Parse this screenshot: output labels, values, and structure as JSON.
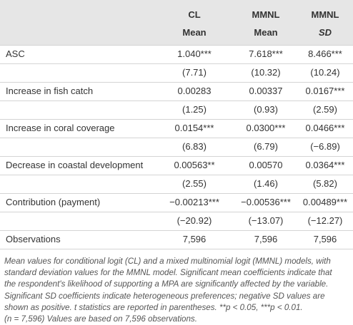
{
  "table": {
    "header": [
      [
        "CL",
        "MMNL",
        "MMNL"
      ],
      [
        "Mean",
        "Mean",
        "SD"
      ]
    ],
    "rows": [
      [
        "ASC",
        "1.040***",
        "7.618***",
        "8.466***"
      ],
      [
        null,
        "(7.71)",
        "(10.32)",
        "(10.24)"
      ],
      [
        "Increase in fish catch",
        "0.00283",
        "0.00337",
        "0.0167***"
      ],
      [
        null,
        "(1.25)",
        "(0.93)",
        "(2.59)"
      ],
      [
        "Increase in coral coverage",
        "0.0154***",
        "0.0300***",
        "0.0466***"
      ],
      [
        null,
        "(6.83)",
        "(6.79)",
        "(−6.89)"
      ],
      [
        "Decrease in coastal development",
        "0.00563**",
        "0.00570",
        "0.0364***"
      ],
      [
        null,
        "(2.55)",
        "(1.46)",
        "(5.82)"
      ],
      [
        "Contribution (payment)",
        "−0.00213***",
        "−0.00536***",
        "0.00489***"
      ],
      [
        null,
        "(−20.92)",
        "(−13.07)",
        "(−12.27)"
      ],
      [
        "Observations",
        "7,596",
        "7,596",
        "7,596"
      ]
    ]
  },
  "footnote": [
    "Mean values for conditional logit (CL) and a mixed multinomial logit (MMNL) models, with",
    "standard deviation values for the MMNL model. Significant mean coefficients indicate that",
    "the respondent's likelihood of supporting a MPA are significantly affected by the variable.",
    "Significant SD coefficients indicate heterogeneous preferences; negative SD values are",
    "shown as positive. t statistics are reported in parentheses. **p < 0.05, ***p < 0.01.",
    "(n = 7,596) Values are based on 7,596 observations."
  ]
}
